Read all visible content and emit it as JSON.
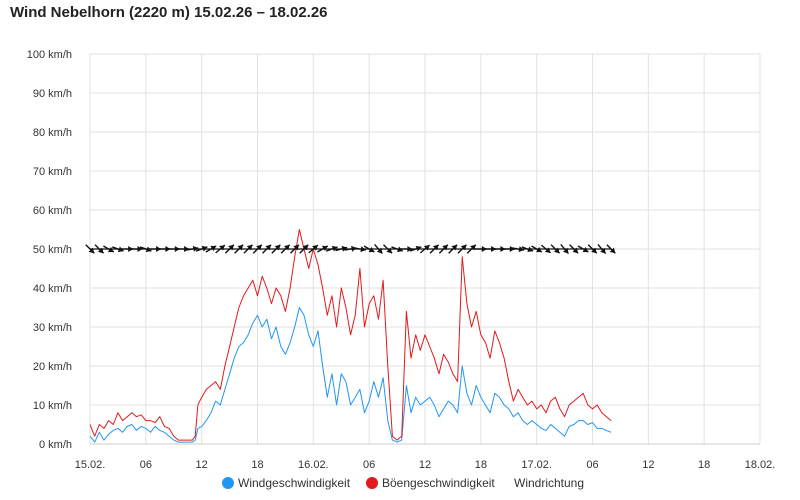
{
  "title": "Wind Nebelhorn (2220 m) 15.02.26 – 18.02.26",
  "chart_data": {
    "type": "line",
    "title": "Wind Nebelhorn (2220 m) 15.02.26 – 18.02.26",
    "xlabel": "",
    "ylabel": "",
    "x_unit": "hours since 15.02. 00:00",
    "xlim": [
      0,
      72
    ],
    "ylim": [
      0,
      100
    ],
    "grid": true,
    "legend_position": "bottom",
    "x_tick_labels": [
      "15.02.",
      "06",
      "12",
      "18",
      "16.02.",
      "06",
      "12",
      "18",
      "17.02.",
      "06",
      "12",
      "18",
      "18.02."
    ],
    "y_tick_labels": [
      "0 km/h",
      "10 km/h",
      "20 km/h",
      "30 km/h",
      "40 km/h",
      "50 km/h",
      "60 km/h",
      "70 km/h",
      "80 km/h",
      "90 km/h",
      "100 km/h"
    ],
    "series": [
      {
        "name": "Windgeschwindigkeit",
        "color": "#2196f3",
        "points": [
          [
            0,
            2
          ],
          [
            0.5,
            0.5
          ],
          [
            1,
            3
          ],
          [
            1.5,
            1
          ],
          [
            2,
            2.5
          ],
          [
            2.5,
            3.5
          ],
          [
            3,
            4
          ],
          [
            3.5,
            3
          ],
          [
            4,
            4.5
          ],
          [
            4.5,
            5
          ],
          [
            5,
            3.5
          ],
          [
            5.5,
            4.5
          ],
          [
            6,
            4
          ],
          [
            6.5,
            3
          ],
          [
            7,
            4.5
          ],
          [
            7.5,
            3.5
          ],
          [
            8,
            3
          ],
          [
            8.5,
            2
          ],
          [
            9,
            1
          ],
          [
            9.5,
            0.5
          ],
          [
            10,
            0.5
          ],
          [
            11,
            0.5
          ],
          [
            11.3,
            1
          ],
          [
            11.6,
            4
          ],
          [
            12,
            4.5
          ],
          [
            12.5,
            6
          ],
          [
            13,
            8
          ],
          [
            13.5,
            11
          ],
          [
            14,
            10
          ],
          [
            14.5,
            14
          ],
          [
            15,
            18
          ],
          [
            15.5,
            22
          ],
          [
            16,
            25
          ],
          [
            16.5,
            26
          ],
          [
            17,
            28
          ],
          [
            17.5,
            31
          ],
          [
            18,
            33
          ],
          [
            18.5,
            30
          ],
          [
            19,
            32
          ],
          [
            19.5,
            27
          ],
          [
            20,
            30
          ],
          [
            20.5,
            25
          ],
          [
            21,
            23
          ],
          [
            21.5,
            26
          ],
          [
            22,
            30
          ],
          [
            22.5,
            35
          ],
          [
            23,
            33
          ],
          [
            23.5,
            28
          ],
          [
            24,
            25
          ],
          [
            24.5,
            29
          ],
          [
            25,
            20
          ],
          [
            25.5,
            12
          ],
          [
            26,
            18
          ],
          [
            26.5,
            10
          ],
          [
            27,
            18
          ],
          [
            27.5,
            16
          ],
          [
            28,
            10
          ],
          [
            28.5,
            12
          ],
          [
            29,
            14
          ],
          [
            29.5,
            8
          ],
          [
            30,
            11
          ],
          [
            30.5,
            16
          ],
          [
            31,
            12
          ],
          [
            31.5,
            17
          ],
          [
            32,
            6
          ],
          [
            32.5,
            1
          ],
          [
            33,
            0.5
          ],
          [
            33.5,
            1
          ],
          [
            34,
            15
          ],
          [
            34.5,
            8
          ],
          [
            35,
            12
          ],
          [
            35.5,
            10
          ],
          [
            36,
            11
          ],
          [
            36.5,
            12
          ],
          [
            37,
            10
          ],
          [
            37.5,
            7
          ],
          [
            38,
            9
          ],
          [
            38.5,
            11
          ],
          [
            39,
            10
          ],
          [
            39.5,
            8
          ],
          [
            40,
            20
          ],
          [
            40.5,
            13
          ],
          [
            41,
            10
          ],
          [
            41.5,
            15
          ],
          [
            42,
            12
          ],
          [
            42.5,
            10
          ],
          [
            43,
            8
          ],
          [
            43.5,
            13
          ],
          [
            44,
            12
          ],
          [
            44.5,
            10
          ],
          [
            45,
            9
          ],
          [
            45.5,
            7
          ],
          [
            46,
            8
          ],
          [
            46.5,
            6
          ],
          [
            47,
            5
          ],
          [
            47.5,
            6
          ],
          [
            48,
            5
          ],
          [
            48.5,
            4
          ],
          [
            49,
            3.5
          ],
          [
            49.5,
            5
          ],
          [
            50,
            4
          ],
          [
            50.5,
            3
          ],
          [
            51,
            2
          ],
          [
            51.5,
            4.5
          ],
          [
            52,
            5
          ],
          [
            52.5,
            6
          ],
          [
            53,
            6
          ],
          [
            53.5,
            5
          ],
          [
            54,
            5.5
          ],
          [
            54.5,
            4
          ],
          [
            55,
            4
          ],
          [
            55.5,
            3.5
          ],
          [
            56,
            3
          ]
        ]
      },
      {
        "name": "Böengeschwindigkeit",
        "color": "#e31a1c",
        "points": [
          [
            0,
            5
          ],
          [
            0.5,
            2
          ],
          [
            1,
            5
          ],
          [
            1.5,
            4
          ],
          [
            2,
            6
          ],
          [
            2.5,
            5
          ],
          [
            3,
            8
          ],
          [
            3.5,
            6
          ],
          [
            4,
            7
          ],
          [
            4.5,
            8
          ],
          [
            5,
            7
          ],
          [
            5.5,
            7.5
          ],
          [
            6,
            6
          ],
          [
            6.5,
            6
          ],
          [
            7,
            5.5
          ],
          [
            7.5,
            7
          ],
          [
            8,
            4.5
          ],
          [
            8.5,
            4
          ],
          [
            9,
            2
          ],
          [
            9.5,
            1
          ],
          [
            10,
            1
          ],
          [
            11,
            1
          ],
          [
            11.3,
            2
          ],
          [
            11.6,
            10
          ],
          [
            12,
            12
          ],
          [
            12.5,
            14
          ],
          [
            13,
            15
          ],
          [
            13.5,
            16
          ],
          [
            14,
            14
          ],
          [
            14.5,
            20
          ],
          [
            15,
            25
          ],
          [
            15.5,
            30
          ],
          [
            16,
            35
          ],
          [
            16.5,
            38
          ],
          [
            17,
            40
          ],
          [
            17.5,
            42
          ],
          [
            18,
            38
          ],
          [
            18.5,
            43
          ],
          [
            19,
            40
          ],
          [
            19.5,
            36
          ],
          [
            20,
            40
          ],
          [
            20.5,
            38
          ],
          [
            21,
            34
          ],
          [
            21.5,
            40
          ],
          [
            22,
            48
          ],
          [
            22.5,
            55
          ],
          [
            23,
            50
          ],
          [
            23.5,
            45
          ],
          [
            24,
            50
          ],
          [
            24.5,
            46
          ],
          [
            25,
            40
          ],
          [
            25.5,
            33
          ],
          [
            26,
            38
          ],
          [
            26.5,
            30
          ],
          [
            27,
            40
          ],
          [
            27.5,
            35
          ],
          [
            28,
            28
          ],
          [
            28.5,
            33
          ],
          [
            29,
            45
          ],
          [
            29.5,
            30
          ],
          [
            30,
            36
          ],
          [
            30.5,
            38
          ],
          [
            31,
            32
          ],
          [
            31.5,
            42
          ],
          [
            32,
            20
          ],
          [
            32.5,
            2
          ],
          [
            33,
            1
          ],
          [
            33.5,
            2
          ],
          [
            34,
            34
          ],
          [
            34.5,
            22
          ],
          [
            35,
            28
          ],
          [
            35.5,
            24
          ],
          [
            36,
            28
          ],
          [
            36.5,
            25
          ],
          [
            37,
            22
          ],
          [
            37.5,
            18
          ],
          [
            38,
            23
          ],
          [
            38.5,
            21
          ],
          [
            39,
            18
          ],
          [
            39.5,
            16
          ],
          [
            40,
            48
          ],
          [
            40.5,
            36
          ],
          [
            41,
            30
          ],
          [
            41.5,
            34
          ],
          [
            42,
            28
          ],
          [
            42.5,
            26
          ],
          [
            43,
            22
          ],
          [
            43.5,
            29
          ],
          [
            44,
            26
          ],
          [
            44.5,
            22
          ],
          [
            45,
            16
          ],
          [
            45.5,
            11
          ],
          [
            46,
            14
          ],
          [
            46.5,
            12
          ],
          [
            47,
            10
          ],
          [
            47.5,
            11
          ],
          [
            48,
            9
          ],
          [
            48.5,
            10
          ],
          [
            49,
            8
          ],
          [
            49.5,
            11
          ],
          [
            50,
            12
          ],
          [
            50.5,
            9
          ],
          [
            51,
            7
          ],
          [
            51.5,
            10
          ],
          [
            52,
            11
          ],
          [
            52.5,
            12
          ],
          [
            53,
            13
          ],
          [
            53.5,
            10
          ],
          [
            54,
            9
          ],
          [
            54.5,
            10
          ],
          [
            55,
            8
          ],
          [
            55.5,
            7
          ],
          [
            56,
            6
          ]
        ]
      }
    ],
    "wind_direction": {
      "name": "Windrichtung",
      "color": "#111111",
      "y_level": 50,
      "times": [
        0,
        1,
        2,
        3,
        4,
        5,
        6,
        7,
        8,
        9,
        10,
        11,
        12,
        13,
        14,
        15,
        16,
        17,
        18,
        19,
        20,
        21,
        22,
        23,
        24,
        25,
        26,
        27,
        28,
        29,
        30,
        31,
        32,
        33,
        34,
        35,
        36,
        37,
        38,
        39,
        40,
        41,
        42,
        43,
        44,
        45,
        46,
        47,
        48,
        49,
        50,
        51,
        52,
        53,
        54,
        55,
        56
      ],
      "directions_deg": [
        315,
        315,
        300,
        290,
        270,
        270,
        290,
        270,
        270,
        270,
        270,
        260,
        250,
        240,
        230,
        225,
        225,
        225,
        225,
        225,
        225,
        225,
        225,
        225,
        230,
        240,
        250,
        255,
        260,
        280,
        300,
        320,
        315,
        290,
        270,
        250,
        230,
        225,
        225,
        225,
        225,
        225,
        270,
        270,
        270,
        270,
        280,
        290,
        300,
        310,
        315,
        320,
        315,
        300,
        315,
        320,
        315
      ]
    },
    "legend": [
      {
        "name": "Windgeschwindigkeit",
        "color": "#2196f3",
        "marker": "circle"
      },
      {
        "name": "Böengeschwindigkeit",
        "color": "#e31a1c",
        "marker": "circle"
      },
      {
        "name": "Windrichtung",
        "color": "#111111",
        "marker": "none"
      }
    ]
  }
}
